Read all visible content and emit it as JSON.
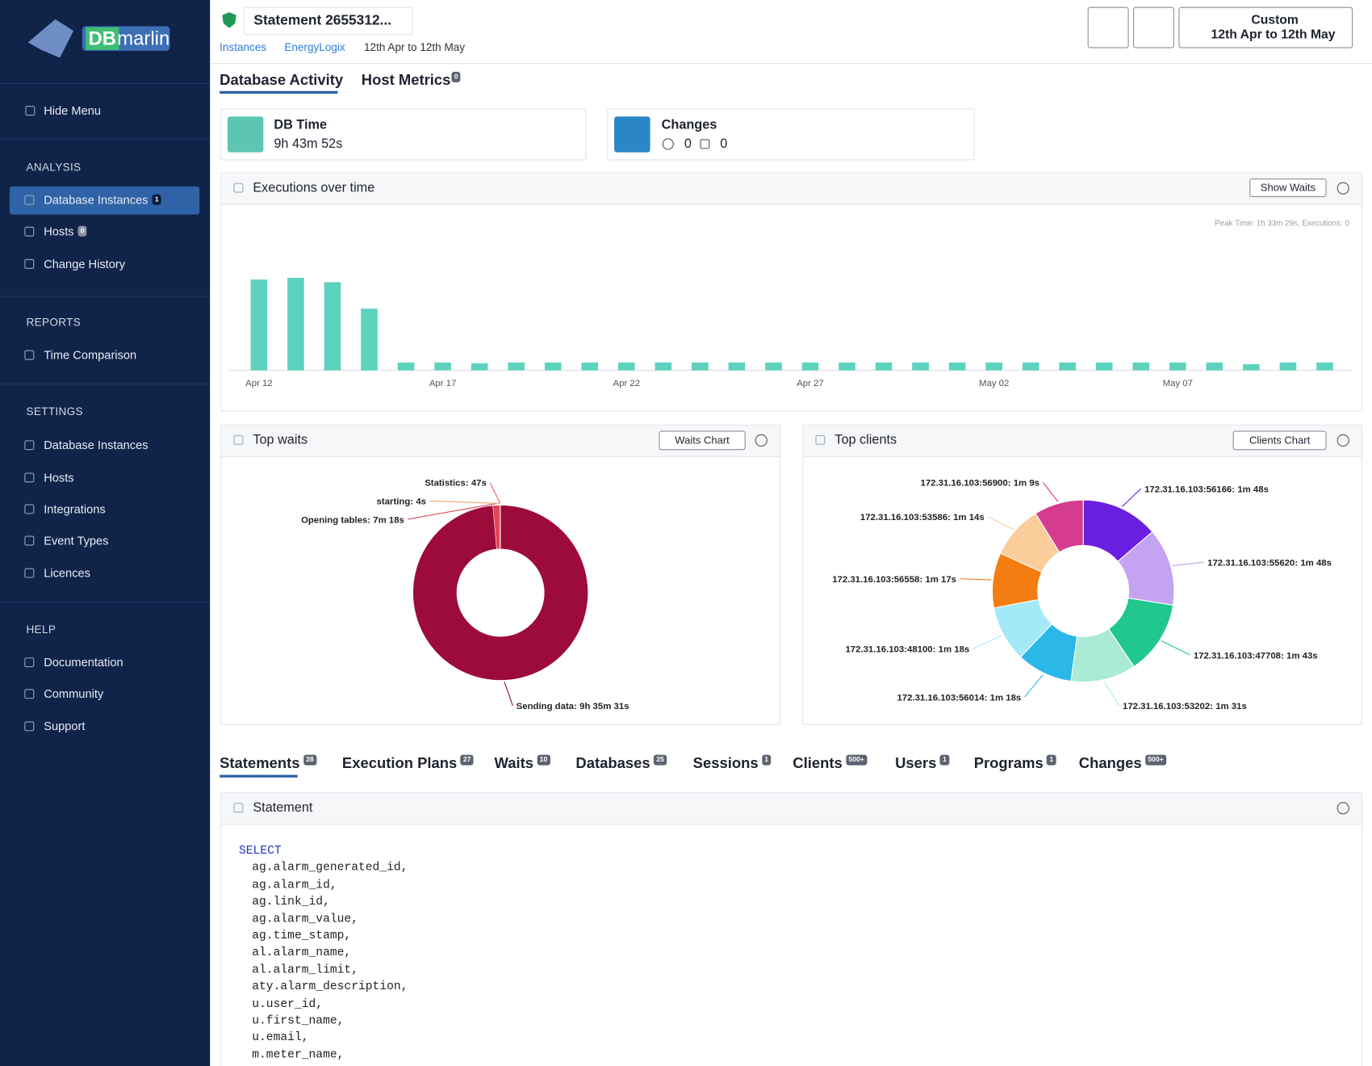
{
  "logo": {
    "db": "DB",
    "name": "marlin"
  },
  "sidebar": {
    "hide_menu": "Hide Menu",
    "sections": [
      {
        "title": "ANALYSIS",
        "items": [
          {
            "label": "Database Instances",
            "badge": 1
          },
          {
            "label": "Hosts",
            "badge": 0
          },
          {
            "label": "Change History"
          }
        ]
      },
      {
        "title": "REPORTS",
        "items": [
          {
            "label": "Time Comparison"
          }
        ]
      },
      {
        "title": "SETTINGS",
        "items": [
          {
            "label": "Database Instances"
          },
          {
            "label": "Hosts"
          },
          {
            "label": "Integrations"
          },
          {
            "label": "Event Types"
          },
          {
            "label": "Licences"
          }
        ]
      },
      {
        "title": "HELP",
        "items": [
          {
            "label": "Documentation"
          },
          {
            "label": "Community"
          },
          {
            "label": "Support"
          }
        ]
      }
    ]
  },
  "header": {
    "statement": "Statement 2655312...",
    "breadcrumb": [
      "Instances",
      "EnergyLogix",
      "12th Apr to 12th May"
    ],
    "time_range": {
      "label": "Custom",
      "range": "12th Apr to 12th May"
    }
  },
  "tabs": [
    {
      "label": "Database Activity"
    },
    {
      "label": "Host Metrics",
      "badge": 0
    }
  ],
  "cards": {
    "db_time": {
      "title": "DB Time",
      "value": "9h 43m 52s"
    },
    "changes": {
      "title": "Changes",
      "info": 0,
      "calendar": 0
    }
  },
  "panels": {
    "executions": {
      "button": "Show Waits",
      "peak": "Peak Time: 1h 33m 29s, Executions: 0"
    },
    "waits": {
      "button": "Waits Chart"
    },
    "clients": {
      "button": "Clients Chart"
    }
  },
  "chart_data": [
    {
      "type": "bar",
      "title": "Executions over time",
      "color": "#5dd3bf",
      "ylim": [
        0,
        140
      ],
      "categories": [
        "Apr 12",
        null,
        null,
        null,
        null,
        "Apr 17",
        null,
        null,
        null,
        null,
        "Apr 22",
        null,
        null,
        null,
        null,
        "Apr 27",
        null,
        null,
        null,
        null,
        "May 02",
        null,
        null,
        null,
        null,
        "May 07",
        null,
        null,
        null,
        null
      ],
      "values": [
        103,
        105,
        100,
        70,
        9,
        9,
        8,
        9,
        9,
        9,
        9,
        9,
        9,
        9,
        9,
        9,
        9,
        9,
        9,
        9,
        9,
        9,
        9,
        9,
        9,
        9,
        9,
        7,
        9,
        9
      ]
    },
    {
      "type": "pie",
      "title": "Top waits",
      "categories": [
        "Sending data:",
        "Opening tables:",
        "starting:",
        "Statistics:"
      ],
      "values": [
        34531,
        438,
        4,
        47
      ],
      "value_labels": [
        "9h 35m 31s",
        "7m 18s",
        "4s",
        "47s"
      ],
      "colors": [
        "#9d0b3b",
        "#e0475a",
        "#f4a37a",
        "#f25c5c"
      ]
    },
    {
      "type": "pie",
      "title": "Top clients",
      "categories": [
        "172.31.16.103:56166:",
        "172.31.16.103:55620:",
        "172.31.16.103:47708:",
        "172.31.16.103:53202:",
        "172.31.16.103:56014:",
        "172.31.16.103:48100:",
        "172.31.16.103:56558:",
        "172.31.16.103:53586:",
        "172.31.16.103:56900:"
      ],
      "values": [
        108,
        108,
        103,
        91,
        78,
        78,
        77,
        74,
        69
      ],
      "value_labels": [
        "1m 48s",
        "1m 48s",
        "1m 43s",
        "1m 31s",
        "1m 18s",
        "1m 18s",
        "1m 17s",
        "1m 14s",
        "1m 9s"
      ],
      "colors": [
        "#6a1fe0",
        "#c3a3f2",
        "#22c790",
        "#a9ebd5",
        "#2bb7e8",
        "#a3e9f8",
        "#f47d12",
        "#fbcd9b",
        "#d53c8f"
      ]
    }
  ],
  "bottom_tabs": [
    {
      "label": "Statements",
      "badge": 28
    },
    {
      "label": "Execution Plans",
      "badge": 27
    },
    {
      "label": "Waits",
      "badge": 10
    },
    {
      "label": "Databases",
      "badge": 25
    },
    {
      "label": "Sessions",
      "badge": 1
    },
    {
      "label": "Clients",
      "badge": "500+"
    },
    {
      "label": "Users",
      "badge": 1
    },
    {
      "label": "Programs",
      "badge": 1
    },
    {
      "label": "Changes",
      "badge": "500+"
    }
  ],
  "statement": {
    "title": "Statement",
    "code": [
      "SELECT",
      "ag.alarm_generated_id,",
      "ag.alarm_id,",
      "ag.link_id,",
      "ag.alarm_value,",
      "ag.time_stamp,",
      "al.alarm_name,",
      "al.alarm_limit,",
      "aty.alarm_description,",
      "u.user_id,",
      "u.first_name,",
      "u.email,",
      "m.meter_name,"
    ]
  }
}
